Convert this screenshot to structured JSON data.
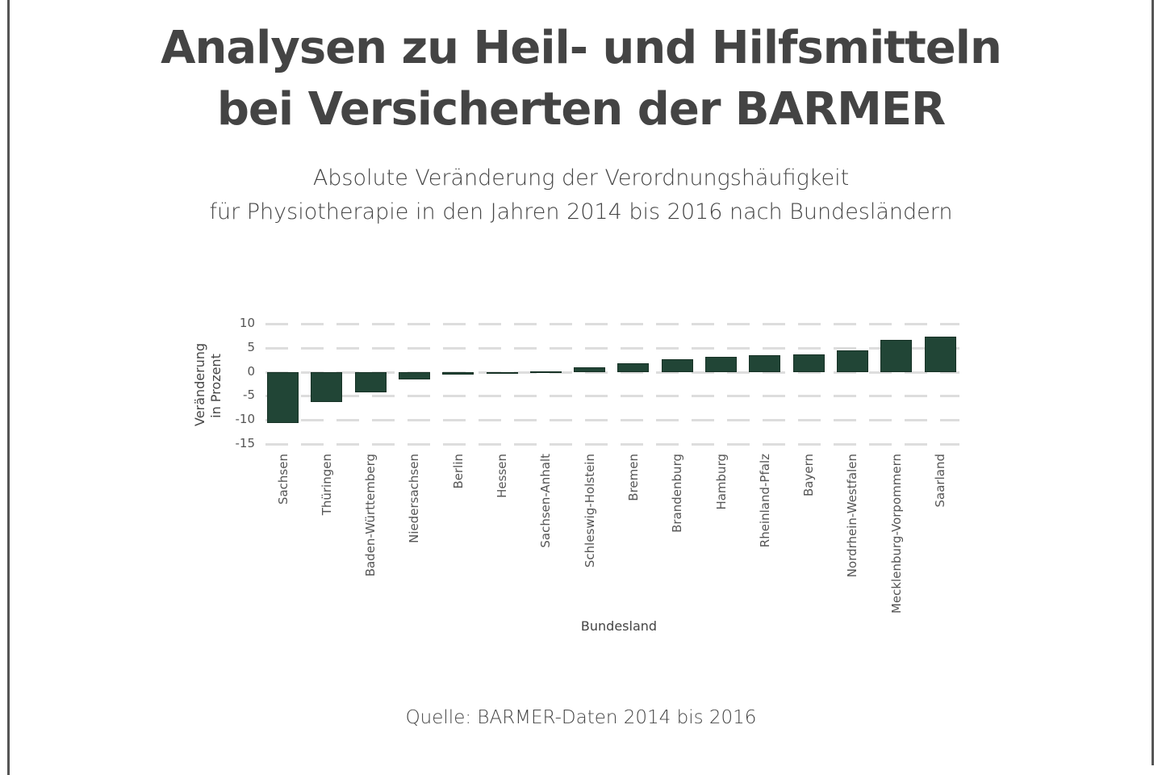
{
  "header": {
    "title_line1": "Analysen zu Heil- und Hilfsmitteln",
    "title_line2": "bei Versicherten der BARMER",
    "subtitle_line1": "Absolute Veränderung der Verordnungshäufigkeit",
    "subtitle_line2": "für Physiotherapie in den Jahren 2014 bis 2016 nach Bundesländern"
  },
  "footer": {
    "source": "Quelle: BARMER-Daten 2014 bis 2016"
  },
  "colors": {
    "bar": "#214536",
    "gridline": "#dddddd",
    "text": "#444444",
    "frame": "#555555"
  },
  "chart_data": {
    "type": "bar",
    "title": "Absolute Veränderung der Verordnungshäufigkeit für Physiotherapie in den Jahren 2014 bis 2016 nach Bundesländern",
    "xlabel": "Bundesland",
    "ylabel": "Veränderung in Prozent",
    "ylabel_line1": "Veränderung",
    "ylabel_line2": "in Prozent",
    "ylim": [
      -15,
      10
    ],
    "yticks": [
      "10",
      "5",
      "0",
      "-5",
      "-10",
      "-15"
    ],
    "grid": true,
    "legend": "none",
    "categories": [
      "Sachsen",
      "Thüringen",
      "Baden-Württemberg",
      "Niedersachsen",
      "Berlin",
      "Hessen",
      "Sachsen-Anhalt",
      "Schleswig-Holstein",
      "Bremen",
      "Brandenburg",
      "Hamburg",
      "Rheinland-Pfalz",
      "Bayern",
      "Nordrhein-Westfalen",
      "Mecklenburg-Vorpommern",
      "Saarland"
    ],
    "values": [
      -10.7,
      -6.2,
      -4.3,
      -1.5,
      -0.5,
      -0.3,
      0.1,
      0.9,
      1.8,
      2.7,
      3.1,
      3.4,
      3.6,
      4.4,
      6.6,
      7.3
    ]
  }
}
